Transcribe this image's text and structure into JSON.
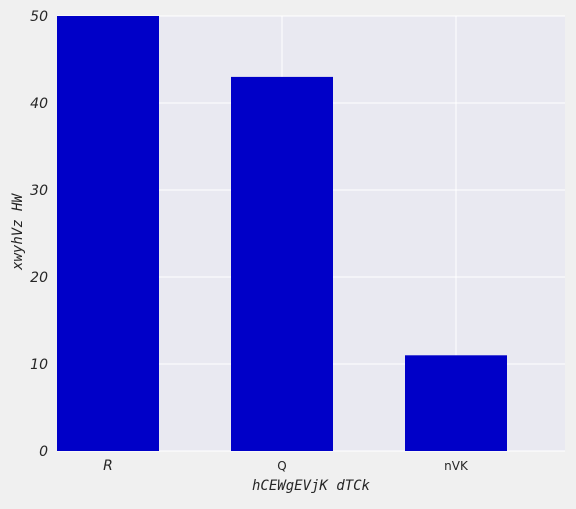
{
  "chart_data": {
    "type": "bar",
    "categories": [
      "R",
      "Q",
      "nVK"
    ],
    "values": [
      50,
      43,
      11
    ],
    "title": "",
    "xlabel": "hCEWgEVjK dTCk",
    "ylabel": "xwyhVz HW",
    "ylim": [
      0,
      50
    ],
    "yticks": [
      0,
      10,
      20,
      30,
      40,
      50
    ],
    "grid": true,
    "legend": "none"
  },
  "colors": {
    "bar": "#0000c8",
    "plot_background": "#e9e9f1",
    "grid": "#ffffff",
    "figure_background": "#f0f0f0"
  }
}
